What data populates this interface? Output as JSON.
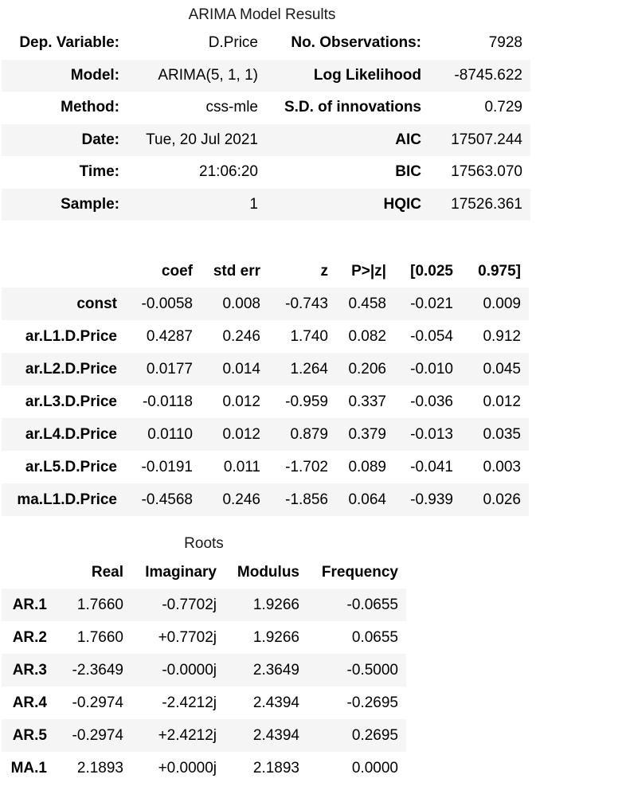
{
  "summary": {
    "caption": "ARIMA Model Results",
    "rows": [
      {
        "k1": "Dep. Variable:",
        "v1": "D.Price",
        "k2": "No. Observations:",
        "v2": "7928"
      },
      {
        "k1": "Model:",
        "v1": "ARIMA(5, 1, 1)",
        "k2": "Log Likelihood",
        "v2": "-8745.622"
      },
      {
        "k1": "Method:",
        "v1": "css-mle",
        "k2": "S.D. of innovations",
        "v2": "0.729"
      },
      {
        "k1": "Date:",
        "v1": "Tue, 20 Jul 2021",
        "k2": "AIC",
        "v2": "17507.244"
      },
      {
        "k1": "Time:",
        "v1": "21:06:20",
        "k2": "BIC",
        "v2": "17563.070"
      },
      {
        "k1": "Sample:",
        "v1": "1",
        "k2": "HQIC",
        "v2": "17526.361"
      }
    ]
  },
  "coefficients": {
    "headers": [
      "",
      "coef",
      "std err",
      "z",
      "P>|z|",
      "[0.025",
      "0.975]"
    ],
    "rows": [
      [
        "const",
        "-0.0058",
        "0.008",
        "-0.743",
        "0.458",
        "-0.021",
        "0.009"
      ],
      [
        "ar.L1.D.Price",
        "0.4287",
        "0.246",
        "1.740",
        "0.082",
        "-0.054",
        "0.912"
      ],
      [
        "ar.L2.D.Price",
        "0.0177",
        "0.014",
        "1.264",
        "0.206",
        "-0.010",
        "0.045"
      ],
      [
        "ar.L3.D.Price",
        "-0.0118",
        "0.012",
        "-0.959",
        "0.337",
        "-0.036",
        "0.012"
      ],
      [
        "ar.L4.D.Price",
        "0.0110",
        "0.012",
        "0.879",
        "0.379",
        "-0.013",
        "0.035"
      ],
      [
        "ar.L5.D.Price",
        "-0.0191",
        "0.011",
        "-1.702",
        "0.089",
        "-0.041",
        "0.003"
      ],
      [
        "ma.L1.D.Price",
        "-0.4568",
        "0.246",
        "-1.856",
        "0.064",
        "-0.939",
        "0.026"
      ]
    ]
  },
  "roots": {
    "caption": "Roots",
    "headers": [
      "",
      "Real",
      "Imaginary",
      "Modulus",
      "Frequency"
    ],
    "rows": [
      [
        "AR.1",
        "1.7660",
        "-0.7702j",
        "1.9266",
        "-0.0655"
      ],
      [
        "AR.2",
        "1.7660",
        "+0.7702j",
        "1.9266",
        "0.0655"
      ],
      [
        "AR.3",
        "-2.3649",
        "-0.0000j",
        "2.3649",
        "-0.5000"
      ],
      [
        "AR.4",
        "-0.2974",
        "-2.4212j",
        "2.4394",
        "-0.2695"
      ],
      [
        "AR.5",
        "-0.2974",
        "+2.4212j",
        "2.4394",
        "0.2695"
      ],
      [
        "MA.1",
        "2.1893",
        "+0.0000j",
        "2.1893",
        "0.0000"
      ]
    ]
  },
  "colors": {
    "row_shade": "#f5f5f5",
    "background": "#ffffff",
    "text": "#000000"
  }
}
